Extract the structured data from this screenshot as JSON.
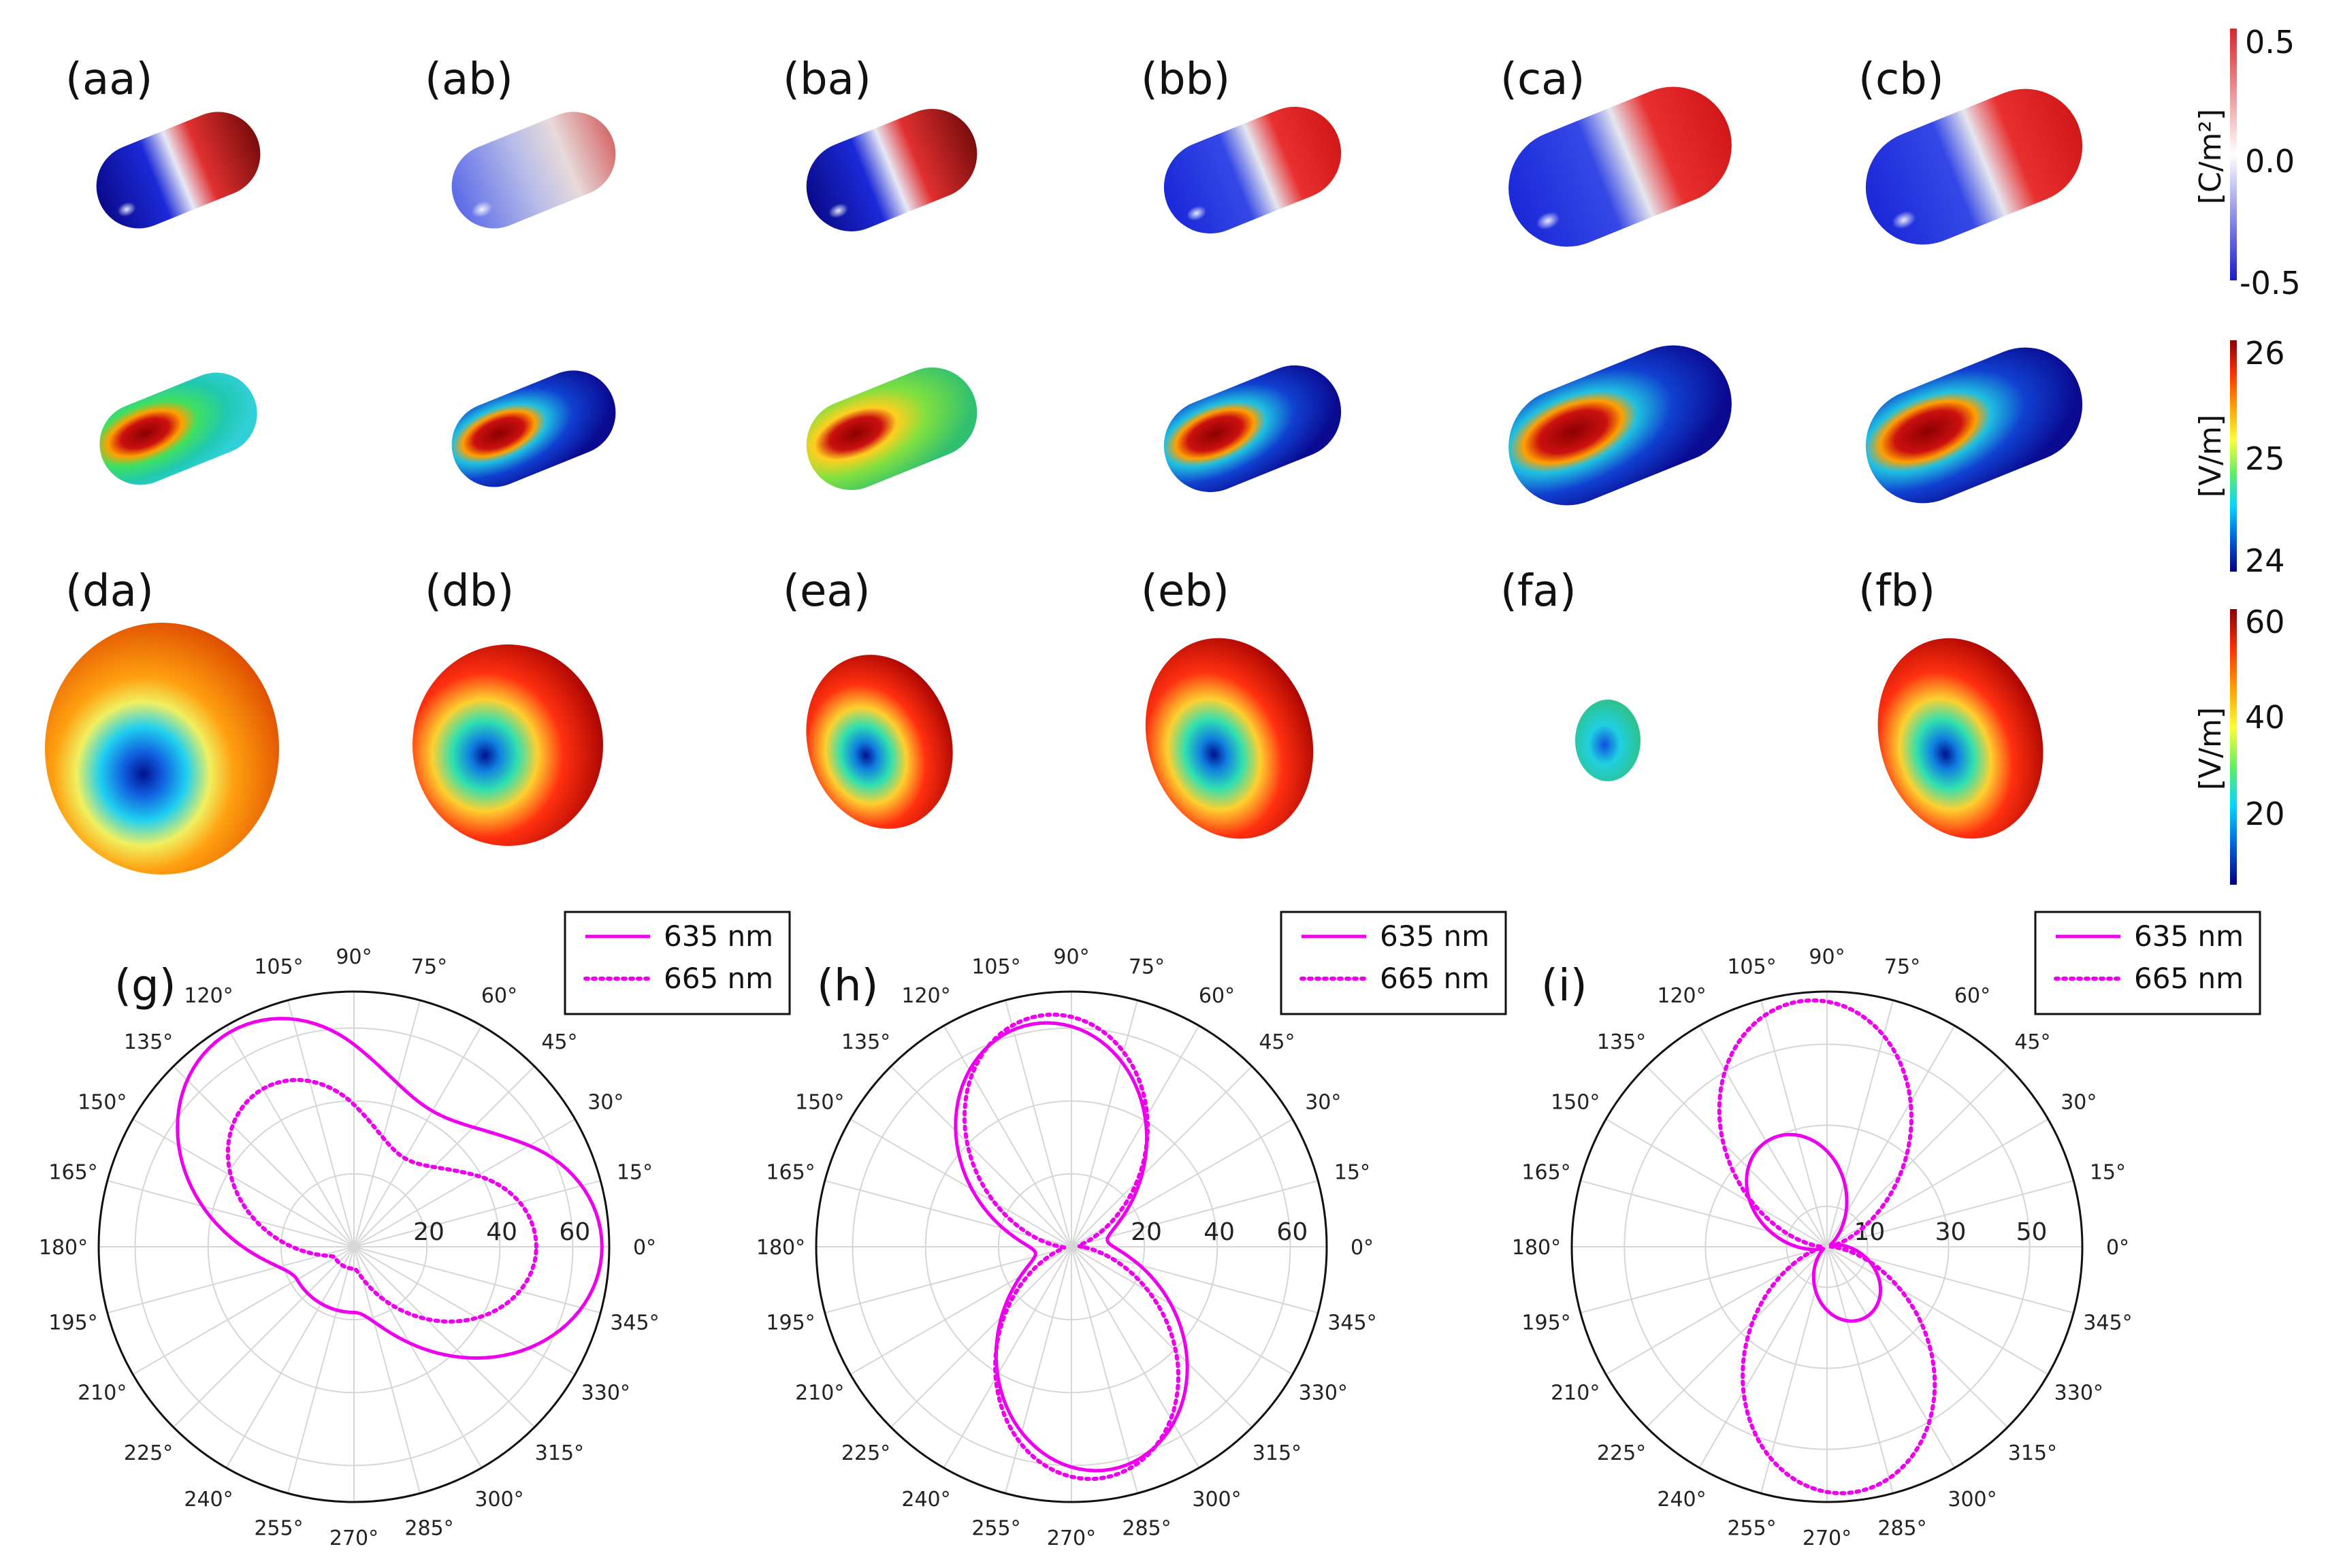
{
  "figure": {
    "row1": {
      "panels": [
        "(aa)",
        "(ab)",
        "(ba)",
        "(bb)",
        "(ca)",
        "(cb)"
      ]
    },
    "row2": {
      "panels": [
        "",
        "",
        "",
        "",
        "",
        ""
      ]
    },
    "row3": {
      "panels": [
        "(da)",
        "(db)",
        "(ea)",
        "(eb)",
        "(fa)",
        "(fb)"
      ]
    },
    "colorbars": [
      {
        "unit": "[C/m²]",
        "ticks": [
          "0.5",
          "0.0",
          "-0.5"
        ],
        "colors": [
          "#d8262b",
          "#ffffff",
          "#1a1ad0"
        ]
      },
      {
        "unit": "[V/m]",
        "ticks": [
          "26",
          "25",
          "24"
        ],
        "colors": [
          "#8b0000",
          "#ff3000",
          "#ffa000",
          "#ffff30",
          "#60f060",
          "#00d8ff",
          "#0060e0",
          "#000080"
        ]
      },
      {
        "unit": "[V/m]",
        "ticks": [
          "60",
          "40",
          "20"
        ],
        "colors": [
          "#8b0000",
          "#ff3000",
          "#ffa000",
          "#ffff30",
          "#60f060",
          "#00d8ff",
          "#0060e0",
          "#000080"
        ]
      }
    ]
  },
  "chart_data": [
    {
      "type": "polar",
      "panel_label": "(g)",
      "angle_labels": [
        "0°",
        "15°",
        "30°",
        "45°",
        "60°",
        "75°",
        "90°",
        "105°",
        "120°",
        "135°",
        "150°",
        "165°",
        "180°",
        "195°",
        "210°",
        "225°",
        "240°",
        "255°",
        "270°",
        "285°",
        "300°",
        "315°",
        "330°",
        "345°"
      ],
      "r_ticks": [
        "20",
        "40",
        "60"
      ],
      "r_range": [
        0,
        70
      ],
      "legend": [
        "635 nm",
        "665 nm"
      ],
      "series": [
        {
          "name": "635 nm",
          "style": "solid",
          "color": "#ee00ee",
          "base": 18,
          "amplitude": 50,
          "phase_deg": 120,
          "lobe_offset_deg": 240
        },
        {
          "name": "665 nm",
          "style": "dotted",
          "color": "#ee00ee",
          "base": 6,
          "amplitude": 44,
          "phase_deg": 120,
          "lobe_offset_deg": 240
        }
      ]
    },
    {
      "type": "polar",
      "panel_label": "(h)",
      "angle_labels": [
        "0°",
        "15°",
        "30°",
        "45°",
        "60°",
        "75°",
        "90°",
        "105°",
        "120°",
        "135°",
        "150°",
        "165°",
        "180°",
        "195°",
        "210°",
        "225°",
        "240°",
        "255°",
        "270°",
        "285°",
        "300°",
        "315°",
        "330°",
        "345°"
      ],
      "r_ticks": [
        "20",
        "40",
        "60"
      ],
      "r_range": [
        0,
        70
      ],
      "legend": [
        "635 nm",
        "665 nm"
      ],
      "series": [
        {
          "name": "635 nm",
          "style": "solid",
          "color": "#ee00ee",
          "base": 10,
          "amplitude": 52,
          "phase_deg": 100,
          "lobe_offset_deg": 180
        },
        {
          "name": "665 nm",
          "style": "dotted",
          "color": "#ee00ee",
          "base": 2,
          "amplitude": 62,
          "phase_deg": 97,
          "lobe_offset_deg": 180
        }
      ]
    },
    {
      "type": "polar",
      "panel_label": "(i)",
      "angle_labels": [
        "0°",
        "15°",
        "30°",
        "45°",
        "60°",
        "75°",
        "90°",
        "105°",
        "120°",
        "135°",
        "150°",
        "165°",
        "180°",
        "195°",
        "210°",
        "225°",
        "240°",
        "255°",
        "270°",
        "285°",
        "300°",
        "315°",
        "330°",
        "345°"
      ],
      "r_ticks": [
        "10",
        "30",
        "50"
      ],
      "r_range": [
        0,
        63
      ],
      "legend": [
        "635 nm",
        "665 nm"
      ],
      "series": [
        {
          "name": "635 nm",
          "style": "solid",
          "color": "#ee00ee",
          "base": 1,
          "amplitude": 29,
          "phase_deg": 118,
          "lobe_offset_deg": 180,
          "lobe_scale": 0.65
        },
        {
          "name": "665 nm",
          "style": "dotted",
          "color": "#ee00ee",
          "base": 1,
          "amplitude": 60,
          "phase_deg": 95,
          "lobe_offset_deg": 180
        }
      ]
    }
  ]
}
